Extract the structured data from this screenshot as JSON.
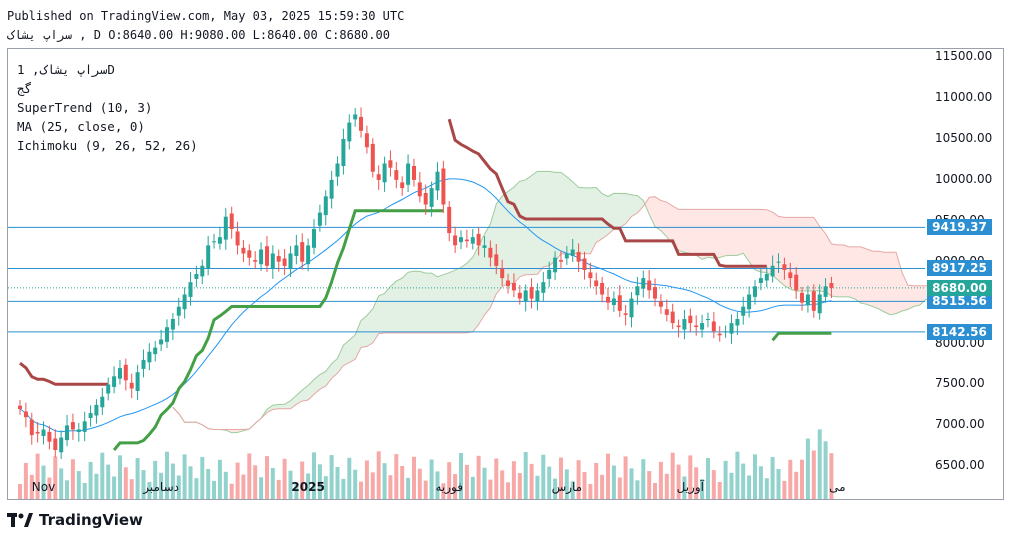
{
  "header": {
    "published": "Published on TradingView.com, May 03, 2025 15:59:30 UTC",
    "symbol": "سراپ یشاک",
    "interval": "D",
    "ohlc": "O:8640.00 H:9080.00 L:8640.00 C:8680.00"
  },
  "legend": {
    "title": "سراپ یشاک, 1D",
    "subtitle": "گج",
    "supertrend": "SuperTrend (10, 3)",
    "ma": "MA (25, close, 0)",
    "ichimoku": "Ichimoku (9, 26, 52, 26)"
  },
  "logo": {
    "text": "TradingView"
  },
  "colors": {
    "up": "#26a69a",
    "down": "#ef5350",
    "supertrend_up": "#43a047",
    "supertrend_down": "#a94747",
    "ma": "#2196f3",
    "hline": "#2b8fd1",
    "last_price": "#26a69a"
  },
  "chart_data": {
    "type": "candlestick",
    "title": "سراپ یشاک, 1D",
    "ylim": [
      6100,
      11600
    ],
    "y_ticks": [
      "11500.00",
      "11000.00",
      "10500.00",
      "10000.00",
      "9500.00",
      "9000.00",
      "8500.00",
      "8000.00",
      "7500.00",
      "7000.00",
      "6500.00"
    ],
    "x_labels": [
      {
        "label": "Nov",
        "index": 4
      },
      {
        "label": "دسامبر",
        "index": 24
      },
      {
        "label": "2025",
        "index": 49,
        "bold": true
      },
      {
        "label": "فوریه",
        "index": 73
      },
      {
        "label": "مارس",
        "index": 93
      },
      {
        "label": "آوریل",
        "index": 114
      },
      {
        "label": "می",
        "index": 139
      }
    ],
    "horizontal_levels": [
      {
        "label": "9419.37",
        "value": 9419.37
      },
      {
        "label": "8917.25",
        "value": 8917.25
      },
      {
        "label": "8515.56",
        "value": 8515.56
      },
      {
        "label": "8142.56",
        "value": 8142.56
      }
    ],
    "last_price": {
      "label": "8680.00",
      "value": 8680
    },
    "closes": [
      7200,
      7100,
      6880,
      6900,
      6950,
      6800,
      6700,
      6850,
      7000,
      6950,
      6950,
      7050,
      7150,
      7250,
      7350,
      7500,
      7600,
      7700,
      7550,
      7450,
      7650,
      7800,
      7900,
      7950,
      8050,
      8200,
      8300,
      8450,
      8600,
      8750,
      8850,
      8950,
      9200,
      9250,
      9300,
      9550,
      9400,
      9200,
      9100,
      9050,
      9000,
      9150,
      8950,
      9100,
      9000,
      8950,
      9100,
      9200,
      9000,
      9200,
      9400,
      9600,
      9800,
      10000,
      10200,
      10500,
      10700,
      10800,
      10600,
      10400,
      10100,
      10000,
      10200,
      10150,
      10000,
      9900,
      10200,
      10000,
      9800,
      9700,
      9900,
      10100,
      9700,
      9350,
      9200,
      9300,
      9250,
      9300,
      9200,
      9200,
      9050,
      8950,
      8800,
      8700,
      8650,
      8550,
      8650,
      8550,
      8650,
      8750,
      8900,
      9050,
      9000,
      9100,
      9150,
      9000,
      8900,
      8800,
      8700,
      8600,
      8500,
      8550,
      8400,
      8350,
      8550,
      8700,
      8800,
      8650,
      8550,
      8450,
      8350,
      8250,
      8200,
      8300,
      8250,
      8200,
      8250,
      8300,
      8150,
      8100,
      8150,
      8250,
      8300,
      8450,
      8600,
      8700,
      8800,
      8850,
      8950,
      9000,
      8900,
      8800,
      8650,
      8500,
      8600,
      8400,
      8600,
      8700,
      8680
    ]
  }
}
